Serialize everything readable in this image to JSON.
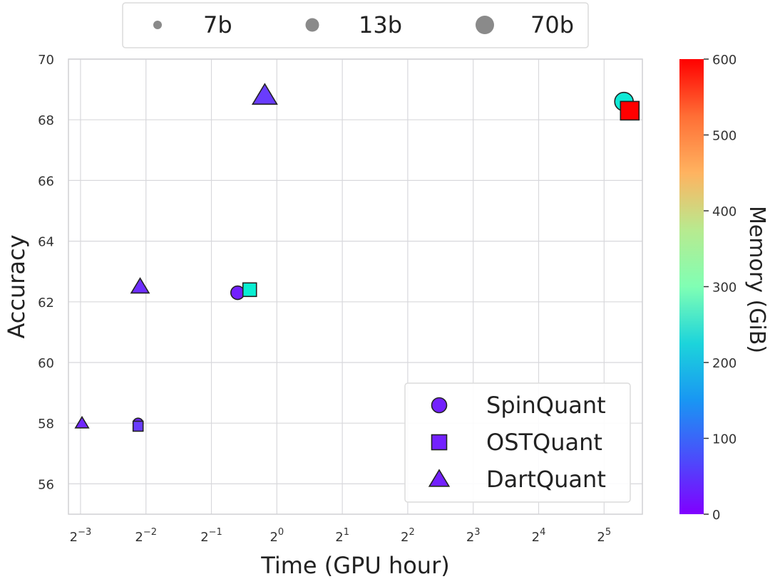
{
  "chart_data": {
    "type": "scatter",
    "xlabel": "Time (GPU hour)",
    "ylabel": "Accuracy",
    "x_scale": "log2",
    "xlim": [
      0.11,
      48
    ],
    "ylim": [
      55,
      70
    ],
    "x_tick_exponents": [
      -3,
      -2,
      -1,
      0,
      1,
      2,
      3,
      4,
      5
    ],
    "x_tick_base": "2",
    "y_ticks": [
      56,
      58,
      60,
      62,
      64,
      66,
      68,
      70
    ],
    "grid": true,
    "colorbar": {
      "label": "Memory (GiB)",
      "range": [
        0,
        600
      ],
      "ticks": [
        0,
        100,
        200,
        300,
        400,
        500,
        600
      ],
      "colormap": "rainbow"
    },
    "size_legend": {
      "placement": "top-center",
      "entries": [
        {
          "label": "7b"
        },
        {
          "label": "13b"
        },
        {
          "label": "70b"
        }
      ]
    },
    "marker_legend": {
      "placement": "lower-right",
      "entries": [
        {
          "label": "SpinQuant",
          "marker": "circle"
        },
        {
          "label": "OSTQuant",
          "marker": "square"
        },
        {
          "label": "DartQuant",
          "marker": "triangle"
        }
      ]
    },
    "series": [
      {
        "name": "SpinQuant",
        "marker": "circle",
        "points": [
          {
            "model": "7b",
            "x": 0.23,
            "y": 58.0,
            "memory": 30
          },
          {
            "model": "13b",
            "x": 0.66,
            "y": 62.3,
            "memory": 25
          },
          {
            "model": "70b",
            "x": 39.5,
            "y": 68.6,
            "memory": 220
          }
        ]
      },
      {
        "name": "OSTQuant",
        "marker": "square",
        "points": [
          {
            "model": "7b",
            "x": 0.23,
            "y": 57.9,
            "memory": 45
          },
          {
            "model": "13b",
            "x": 0.75,
            "y": 62.4,
            "memory": 230
          },
          {
            "model": "70b",
            "x": 42.0,
            "y": 68.3,
            "memory": 600
          }
        ]
      },
      {
        "name": "DartQuant",
        "marker": "triangle",
        "points": [
          {
            "model": "7b",
            "x": 0.127,
            "y": 58.0,
            "memory": 30
          },
          {
            "model": "13b",
            "x": 0.235,
            "y": 62.5,
            "memory": 35
          },
          {
            "model": "70b",
            "x": 0.88,
            "y": 68.8,
            "memory": 45
          }
        ]
      }
    ],
    "colors": {
      "grid": "#d8d8dc",
      "frame": "#d0d0d4",
      "marker_edge": "#222222",
      "size_legend_marker": "#8a8a8a"
    }
  }
}
